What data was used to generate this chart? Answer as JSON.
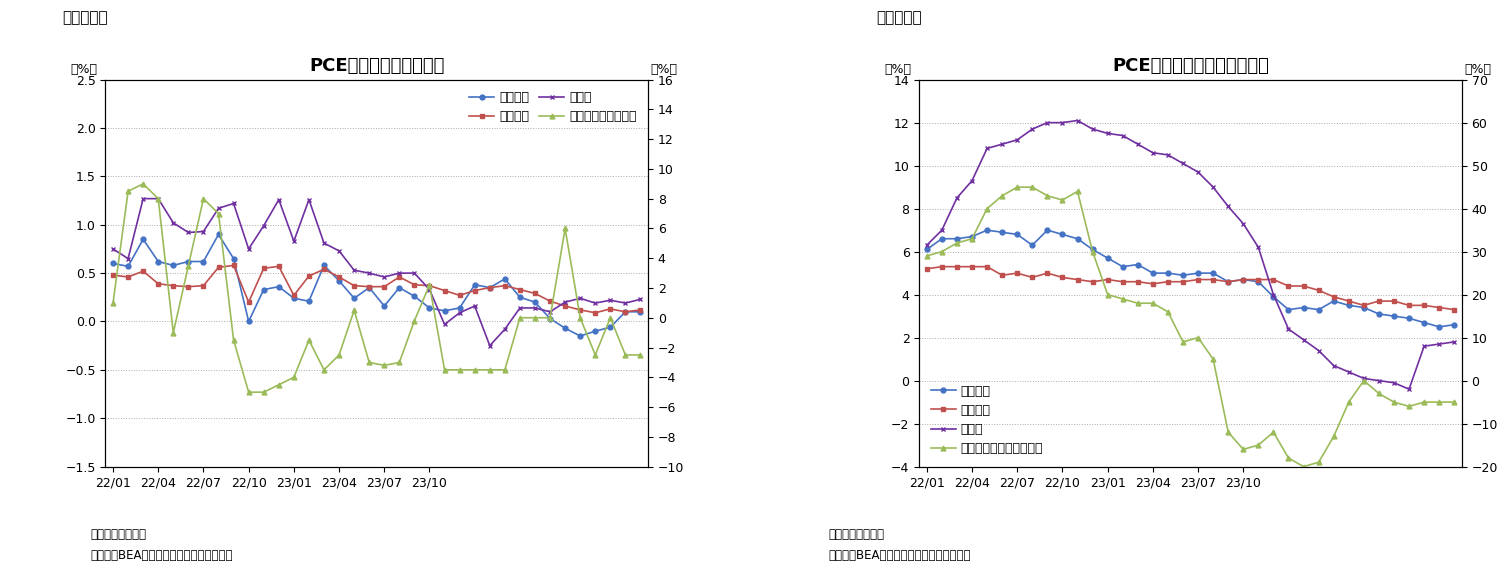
{
  "fig6_title": "PCE価格指数（前月比）",
  "fig7_title": "PCE価格指数（前年同月比）",
  "fig6_label": "（図表６）",
  "fig7_label": "（図表７）",
  "note1": "（注）季節調整済",
  "note2": "（資料）BEAよりニッセイ基礎研究所作成",
  "fig6": {
    "ylim_left": [
      -1.5,
      2.5
    ],
    "ylim_right": [
      -10,
      16
    ],
    "yticks_left": [
      -1.5,
      -1.0,
      -0.5,
      0.0,
      0.5,
      1.0,
      1.5,
      2.0,
      2.5
    ],
    "yticks_right": [
      -10,
      -8,
      -6,
      -4,
      -2,
      0,
      2,
      4,
      6,
      8,
      10,
      12,
      14,
      16
    ],
    "legend_labels": [
      "総合指数",
      "コア指数",
      "食料品",
      "エネルギー（右軸）"
    ],
    "colors": [
      "#4472C4",
      "#C0504D",
      "#7030A0",
      "#9BBB59"
    ],
    "markers": [
      "o",
      "s",
      "x",
      "^"
    ],
    "total": [
      0.6,
      0.57,
      0.85,
      0.62,
      0.58,
      0.62,
      0.62,
      0.9,
      0.65,
      0.0,
      0.33,
      0.36,
      0.24,
      0.21,
      0.58,
      0.42,
      0.24,
      0.35,
      0.16,
      0.35,
      0.26,
      0.14,
      0.11,
      0.14,
      0.38,
      0.35,
      0.44,
      0.25,
      0.2,
      0.03,
      -0.07,
      -0.15,
      -0.1,
      -0.06,
      0.1,
      0.1
    ],
    "core": [
      0.48,
      0.46,
      0.52,
      0.39,
      0.37,
      0.36,
      0.37,
      0.56,
      0.58,
      0.2,
      0.55,
      0.57,
      0.27,
      0.47,
      0.54,
      0.46,
      0.37,
      0.36,
      0.36,
      0.46,
      0.38,
      0.37,
      0.32,
      0.27,
      0.32,
      0.35,
      0.37,
      0.33,
      0.29,
      0.21,
      0.16,
      0.12,
      0.09,
      0.13,
      0.1,
      0.12
    ],
    "food": [
      0.75,
      0.65,
      1.27,
      1.27,
      1.02,
      0.92,
      0.93,
      1.17,
      1.22,
      0.75,
      0.99,
      1.26,
      0.83,
      1.26,
      0.81,
      0.73,
      0.53,
      0.5,
      0.46,
      0.5,
      0.5,
      0.33,
      -0.03,
      0.09,
      0.16,
      -0.25,
      -0.08,
      0.14,
      0.14,
      0.1,
      0.2,
      0.24,
      0.19,
      0.22,
      0.19,
      0.23
    ],
    "energy": [
      1.0,
      8.5,
      9.0,
      8.0,
      -1.0,
      3.5,
      8.0,
      7.0,
      -1.5,
      -5.0,
      -5.0,
      -4.5,
      -4.0,
      -1.5,
      -3.5,
      -2.5,
      0.5,
      -3.0,
      -3.2,
      -3.0,
      -0.2,
      2.2,
      -3.5,
      -3.5,
      -3.5,
      -3.5,
      -3.5,
      0.0,
      0.0,
      0.0,
      6.0,
      0.0,
      -2.5,
      0.0,
      -2.5,
      -2.5
    ]
  },
  "fig7": {
    "ylim_left": [
      -4,
      14
    ],
    "ylim_right": [
      -20,
      70
    ],
    "yticks_left": [
      -4,
      -2,
      0,
      2,
      4,
      6,
      8,
      10,
      12,
      14
    ],
    "yticks_right": [
      -20,
      -10,
      0,
      10,
      20,
      30,
      40,
      50,
      60,
      70
    ],
    "legend_labels": [
      "総合指数",
      "コア指数",
      "食料品",
      "エネルギー関連（右軸）"
    ],
    "colors": [
      "#4472C4",
      "#C0504D",
      "#7030A0",
      "#9BBB59"
    ],
    "markers": [
      "o",
      "s",
      "x",
      "^"
    ],
    "total": [
      6.1,
      6.6,
      6.6,
      6.7,
      7.0,
      6.9,
      6.8,
      6.3,
      7.0,
      6.8,
      6.6,
      6.1,
      5.7,
      5.3,
      5.4,
      5.0,
      5.0,
      4.9,
      5.0,
      5.0,
      4.6,
      4.7,
      4.6,
      3.9,
      3.3,
      3.4,
      3.3,
      3.7,
      3.5,
      3.4,
      3.1,
      3.0,
      2.9,
      2.7,
      2.5,
      2.6
    ],
    "core": [
      5.2,
      5.3,
      5.3,
      5.3,
      5.3,
      4.9,
      5.0,
      4.8,
      5.0,
      4.8,
      4.7,
      4.6,
      4.7,
      4.6,
      4.6,
      4.5,
      4.6,
      4.6,
      4.7,
      4.7,
      4.6,
      4.7,
      4.7,
      4.7,
      4.4,
      4.4,
      4.2,
      3.9,
      3.7,
      3.5,
      3.7,
      3.7,
      3.5,
      3.5,
      3.4,
      3.3
    ],
    "food": [
      6.3,
      7.0,
      8.5,
      9.3,
      10.8,
      11.0,
      11.2,
      11.7,
      12.0,
      12.0,
      12.1,
      11.7,
      11.5,
      11.4,
      11.0,
      10.6,
      10.5,
      10.1,
      9.7,
      9.0,
      8.1,
      7.3,
      6.2,
      4.0,
      2.4,
      1.9,
      1.4,
      0.7,
      0.4,
      0.1,
      0.0,
      -0.1,
      -0.4,
      1.6,
      1.7,
      1.8
    ],
    "energy": [
      29.0,
      30.0,
      32.0,
      33.0,
      40.0,
      43.0,
      45.0,
      45.0,
      43.0,
      42.0,
      44.0,
      30.0,
      20.0,
      19.0,
      18.0,
      18.0,
      16.0,
      9.0,
      10.0,
      5.0,
      -12.0,
      -16.0,
      -15.0,
      -12.0,
      -18.0,
      -20.0,
      -19.0,
      -13.0,
      -5.0,
      0.0,
      -3.0,
      -5.0,
      -6.0,
      -5.0,
      -5.0,
      -5.0
    ]
  },
  "n_points": 36,
  "bg_color": "#FFFFFF",
  "grid_color": "#AAAAAA",
  "title_fontsize": 13,
  "label_fontsize": 9,
  "tick_fontsize": 9,
  "legend_fontsize": 9
}
